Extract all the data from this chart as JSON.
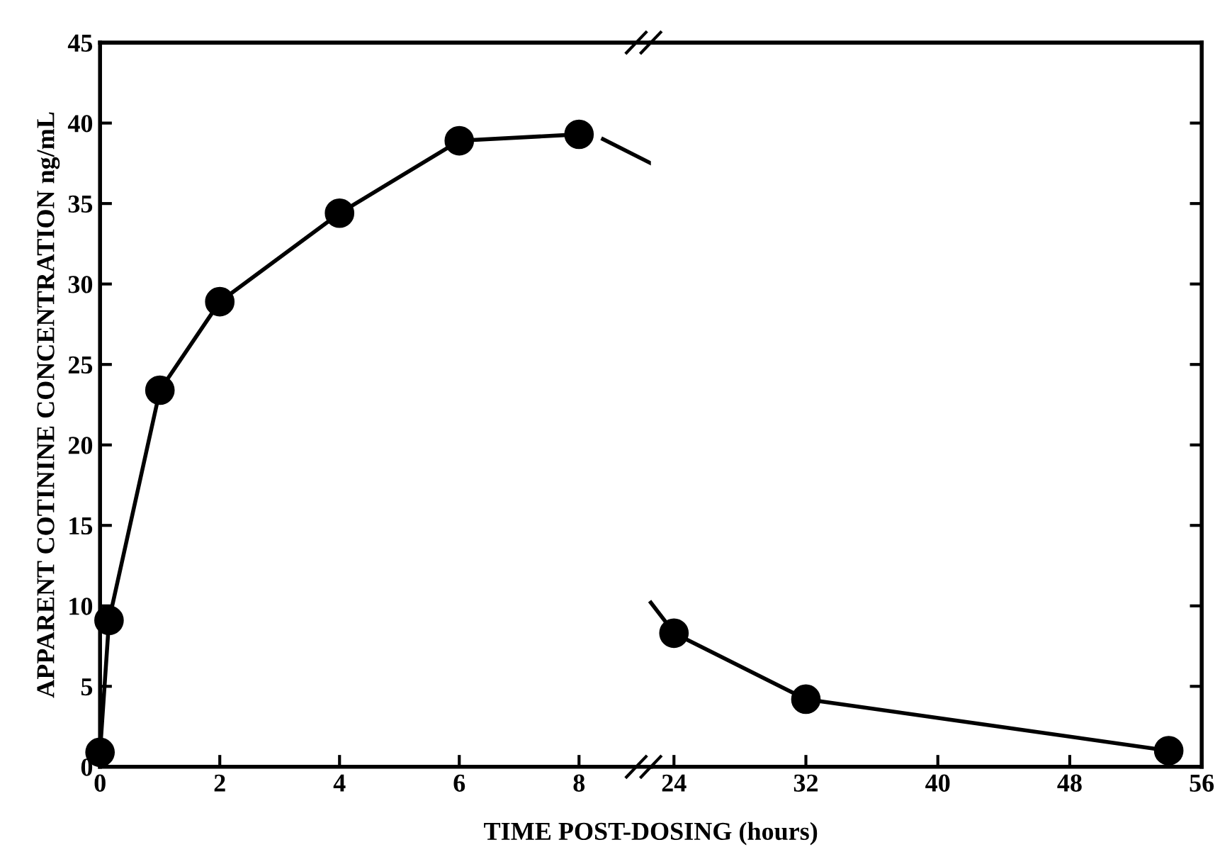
{
  "chart_data": [
    {
      "type": "line",
      "ylabel": "APPARENT COTININE CONCENTRATION ng/mL",
      "xlabel": "TIME POST-DOSING (hours)",
      "series": [
        {
          "x": [
            0,
            0.15,
            1,
            2,
            4,
            6,
            8
          ],
          "values": [
            0.9,
            9.1,
            23.4,
            28.9,
            34.4,
            38.9,
            39.3
          ],
          "color": "#000000",
          "marker": "circle"
        },
        {
          "x": [
            8.4,
            9.2
          ],
          "values": [
            39.0,
            37.5
          ],
          "color": "#000000",
          "marker": "none"
        }
      ],
      "line_style": "solid",
      "xlim": [
        0,
        9.2
      ],
      "xticks": [
        0,
        2,
        4,
        6,
        8
      ],
      "ylim": [
        0,
        45
      ],
      "yticks": [
        0,
        5,
        10,
        15,
        20,
        25,
        30,
        35,
        40,
        45
      ],
      "grid": false,
      "legend": false
    },
    {
      "type": "line",
      "series": [
        {
          "x": [
            22.6,
            23.5
          ],
          "values": [
            10.2,
            9.0
          ],
          "color": "#000000",
          "marker": "none"
        },
        {
          "x": [
            24,
            32,
            54
          ],
          "values": [
            8.3,
            4.2,
            1.0
          ],
          "color": "#000000",
          "marker": "circle"
        }
      ],
      "line_style": "solid",
      "xlim": [
        22.6,
        56
      ],
      "xticks": [
        24,
        32,
        40,
        48,
        56
      ],
      "ylim": [
        0,
        45
      ],
      "yticks": [
        0,
        5,
        10,
        15,
        20,
        25,
        30,
        35,
        40,
        45
      ],
      "tick_labels": "x",
      "grid": false,
      "legend": false
    }
  ]
}
